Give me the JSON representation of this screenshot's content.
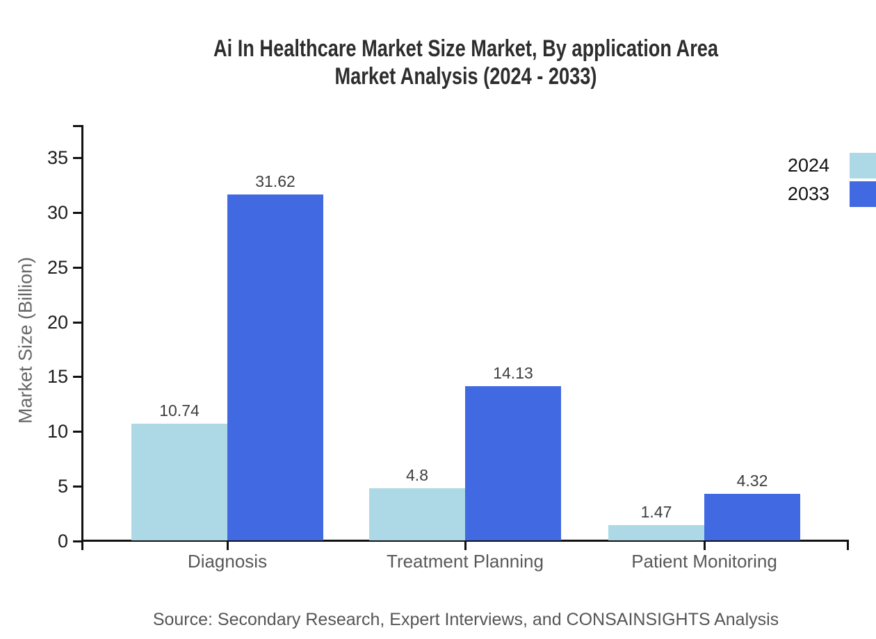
{
  "title": {
    "line1": "Ai In Healthcare Market Size Market, By application Area",
    "line2": "Market Analysis (2024 - 2033)"
  },
  "source": "Source: Secondary Research, Expert Interviews, and CONSAINSIGHTS Analysis",
  "chart_data": {
    "type": "bar",
    "title": "Ai In Healthcare Market Size Market, By application Area Market Analysis (2024 - 2033)",
    "categories": [
      "Diagnosis",
      "Treatment Planning",
      "Patient Monitoring"
    ],
    "series": [
      {
        "name": "2024",
        "color": "#ADD8E6",
        "values": [
          10.74,
          4.8,
          1.47
        ]
      },
      {
        "name": "2033",
        "color": "#4169E1",
        "values": [
          31.62,
          14.13,
          4.32
        ]
      }
    ],
    "xlabel": "",
    "ylabel": "Market Size (Billion)",
    "yticks": [
      0,
      5,
      10,
      15,
      20,
      25,
      30,
      35
    ],
    "ylim": [
      0,
      38
    ],
    "grid": false,
    "legend_position": "top-right"
  }
}
